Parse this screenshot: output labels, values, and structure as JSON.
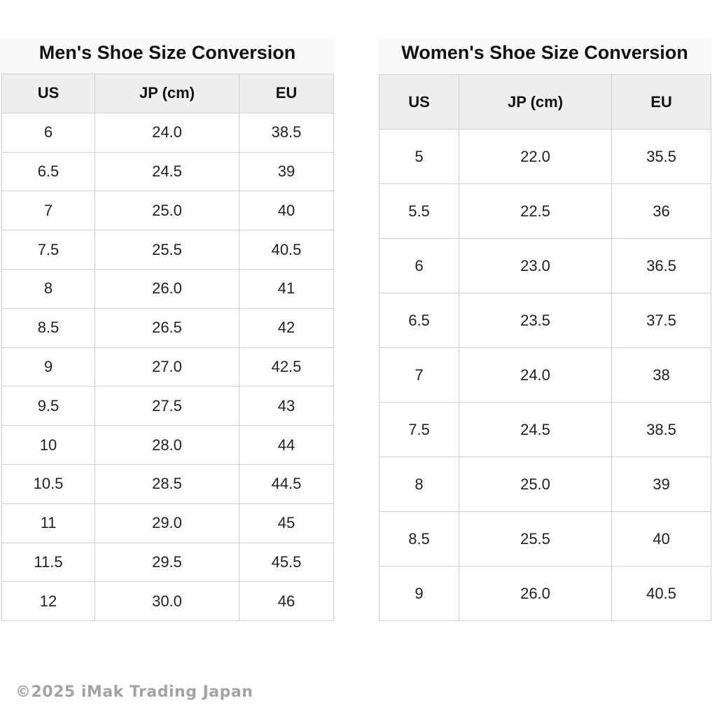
{
  "men": {
    "title": "Men's Shoe Size Conversion",
    "headers": [
      "US",
      "JP (cm)",
      "EU"
    ],
    "rows": [
      [
        "6",
        "24.0",
        "38.5"
      ],
      [
        "6.5",
        "24.5",
        "39"
      ],
      [
        "7",
        "25.0",
        "40"
      ],
      [
        "7.5",
        "25.5",
        "40.5"
      ],
      [
        "8",
        "26.0",
        "41"
      ],
      [
        "8.5",
        "26.5",
        "42"
      ],
      [
        "9",
        "27.0",
        "42.5"
      ],
      [
        "9.5",
        "27.5",
        "43"
      ],
      [
        "10",
        "28.0",
        "44"
      ],
      [
        "10.5",
        "28.5",
        "44.5"
      ],
      [
        "11",
        "29.0",
        "45"
      ],
      [
        "11.5",
        "29.5",
        "45.5"
      ],
      [
        "12",
        "30.0",
        "46"
      ]
    ]
  },
  "women": {
    "title": "Women's Shoe Size Conversion",
    "headers": [
      "US",
      "JP (cm)",
      "EU"
    ],
    "rows": [
      [
        "5",
        "22.0",
        "35.5"
      ],
      [
        "5.5",
        "22.5",
        "36"
      ],
      [
        "6",
        "23.0",
        "36.5"
      ],
      [
        "6.5",
        "23.5",
        "37.5"
      ],
      [
        "7",
        "24.0",
        "38"
      ],
      [
        "7.5",
        "24.5",
        "38.5"
      ],
      [
        "8",
        "25.0",
        "39"
      ],
      [
        "8.5",
        "25.5",
        "40"
      ],
      [
        "9",
        "26.0",
        "40.5"
      ]
    ]
  },
  "footer": {
    "copyright": "©2025 iMak Trading Japan"
  },
  "colors": {
    "header_bg": "#eeeeee",
    "border": "#cfcfcf",
    "footer_text": "#a3a3a3"
  }
}
